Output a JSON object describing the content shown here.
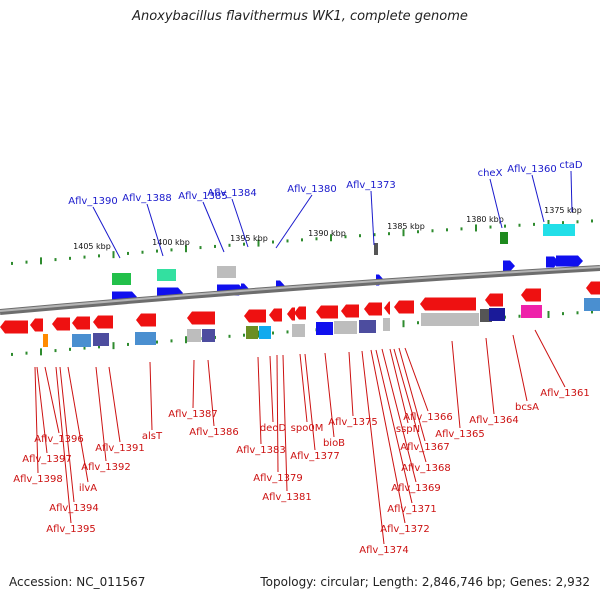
{
  "title": "Anoxybacillus flavithermus WK1, complete genome",
  "footer": {
    "accession": "Accession: NC_011567",
    "summary": "Topology: circular; Length: 2,846,746 bp; Genes: 2,932"
  },
  "colors": {
    "forward_label": "#1a1acc",
    "reverse_label": "#cc1111",
    "backbone": "#808080",
    "ticks": "#2e8b2e"
  },
  "scale_labels": [
    "1405 kbp",
    "1400 kbp",
    "1395 kbp",
    "1390 kbp",
    "1385 kbp",
    "1380 kbp",
    "1375 kbp"
  ],
  "forward_genes": [
    "Aflv_1390",
    "Aflv_1388",
    "Aflv_1385",
    "Aflv_1384",
    "Aflv_1380",
    "Aflv_1373",
    "cheX",
    "Aflv_1360",
    "ctaD"
  ],
  "reverse_genes": [
    "Aflv_1396",
    "Aflv_1397",
    "Aflv_1398",
    "ilvA",
    "Aflv_1394",
    "Aflv_1395",
    "Aflv_1391",
    "Aflv_1392",
    "alsT",
    "Aflv_1387",
    "Aflv_1386",
    "Aflv_1383",
    "deoD",
    "Aflv_1379",
    "Aflv_1381",
    "spo0M",
    "Aflv_1377",
    "bioB",
    "Aflv_1375",
    "Aflv_1374",
    "Aflv_1372",
    "Aflv_1371",
    "Aflv_1369",
    "sspN",
    "Aflv_1368",
    "Aflv_1367",
    "Aflv_1366",
    "Aflv_1365",
    "Aflv_1364",
    "bcsA",
    "Aflv_1361"
  ]
}
